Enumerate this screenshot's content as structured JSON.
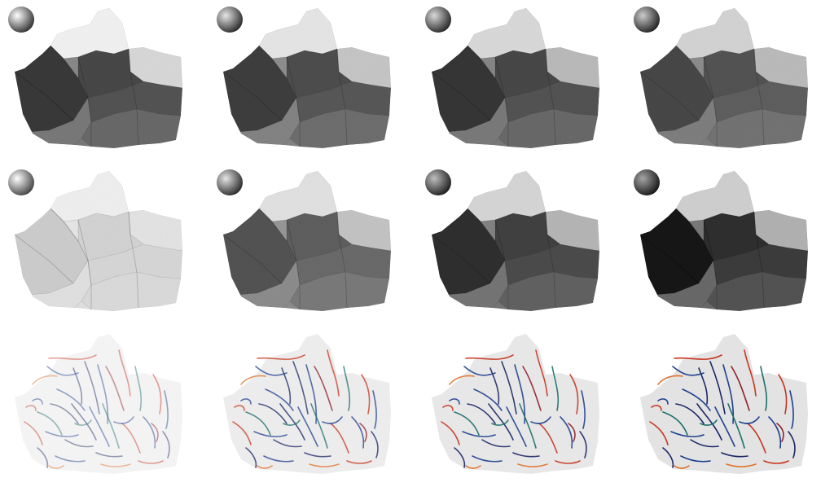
{
  "figure": {
    "columns": 4,
    "rows": [
      {
        "kind": "shaded",
        "panels": [
          {
            "light_dir": "upper-left",
            "sphere_light": 0.55,
            "faces": [
              "#f4f4f4",
              "#dadada",
              "#3a3a3a",
              "#4a4a4a",
              "#555555",
              "#7a7a7a",
              "#6a6a6a",
              "#8a8a8a"
            ]
          },
          {
            "light_dir": "upper-left",
            "sphere_light": 0.45,
            "faces": [
              "#e8e8e8",
              "#c8c8c8",
              "#404040",
              "#505050",
              "#5a5a5a",
              "#858585",
              "#707070",
              "#909090"
            ]
          },
          {
            "light_dir": "upper-left",
            "sphere_light": 0.4,
            "faces": [
              "#dcdcdc",
              "#bcbcbc",
              "#383838",
              "#484848",
              "#555555",
              "#7c7c7c",
              "#6a6a6a",
              "#888888"
            ]
          },
          {
            "light_dir": "upper-left",
            "sphere_light": 0.35,
            "faces": [
              "#d6d6d6",
              "#bdbdbd",
              "#4a4a4a",
              "#555555",
              "#606060",
              "#808080",
              "#747474",
              "#8e8e8e"
            ]
          }
        ]
      },
      {
        "kind": "shaded",
        "panels": [
          {
            "light_dir": "left",
            "sphere_light": 0.85,
            "faces": [
              "#f2f2f2",
              "#e6e6e6",
              "#cfcfcf",
              "#d6d6d6",
              "#d9d9d9",
              "#e3e3e3",
              "#dddddd",
              "#e8e8e8"
            ]
          },
          {
            "light_dir": "upper-left",
            "sphere_light": 0.45,
            "faces": [
              "#e4e4e4",
              "#c6c6c6",
              "#555555",
              "#606060",
              "#6c6c6c",
              "#8e8e8e",
              "#7c7c7c",
              "#9a9a9a"
            ]
          },
          {
            "light_dir": "upper-left",
            "sphere_light": 0.3,
            "faces": [
              "#d8d8d8",
              "#b8b8b8",
              "#333333",
              "#434343",
              "#4e4e4e",
              "#777777",
              "#646464",
              "#848484"
            ]
          },
          {
            "light_dir": "upper-left",
            "sphere_light": 0.2,
            "faces": [
              "#d2d2d2",
              "#b4b4b4",
              "#1e1e1e",
              "#303030",
              "#3c3c3c",
              "#6a6a6a",
              "#555555",
              "#7a7a7a"
            ]
          }
        ]
      },
      {
        "kind": "strokes",
        "panels": [
          {
            "base": "#f3f3f3",
            "stroke_opacity": 0.45
          },
          {
            "base": "#ececec",
            "stroke_opacity": 0.75
          },
          {
            "base": "#e7e7e7",
            "stroke_opacity": 0.9
          },
          {
            "base": "#e3e3e3",
            "stroke_opacity": 1.0
          }
        ]
      }
    ],
    "stroke_colors": {
      "red": "#c8341e",
      "orange": "#e0702a",
      "blue": "#1f3f8f",
      "navy": "#1c2766",
      "teal": "#1c6f6a",
      "crimson": "#8e1f2a"
    }
  }
}
